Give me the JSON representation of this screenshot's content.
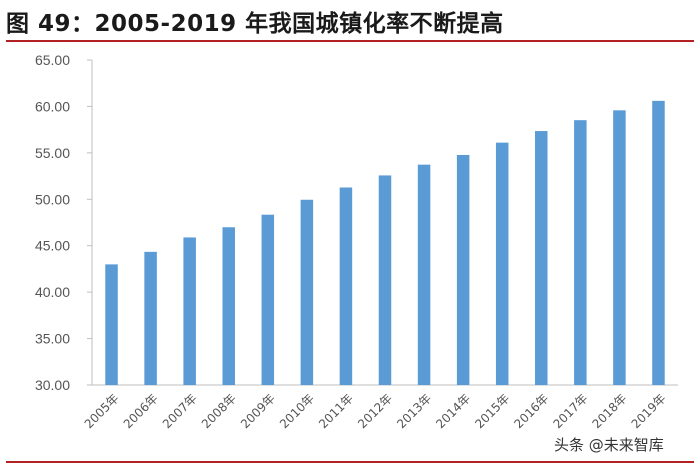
{
  "header": {
    "title": "图 49：2005-2019 年我国城镇化率不断提高"
  },
  "watermark": "头条 @未来智库",
  "colors": {
    "bar": "#5b9bd5",
    "axis": "#bfbfbf",
    "rule": "#b22222"
  },
  "chart_data": {
    "type": "bar",
    "title": "图 49：2005-2019 年我国城镇化率不断提高",
    "xlabel": "",
    "ylabel": "",
    "ylim": [
      30,
      65
    ],
    "yticks": [
      "30.00",
      "35.00",
      "40.00",
      "45.00",
      "50.00",
      "55.00",
      "60.00",
      "65.00"
    ],
    "categories": [
      "2005年",
      "2006年",
      "2007年",
      "2008年",
      "2009年",
      "2010年",
      "2011年",
      "2012年",
      "2013年",
      "2014年",
      "2015年",
      "2016年",
      "2017年",
      "2018年",
      "2019年"
    ],
    "values": [
      42.99,
      44.34,
      45.89,
      46.99,
      48.34,
      49.95,
      51.27,
      52.57,
      53.73,
      54.77,
      56.1,
      57.35,
      58.52,
      59.58,
      60.6
    ],
    "grid": false,
    "legend": "none"
  }
}
